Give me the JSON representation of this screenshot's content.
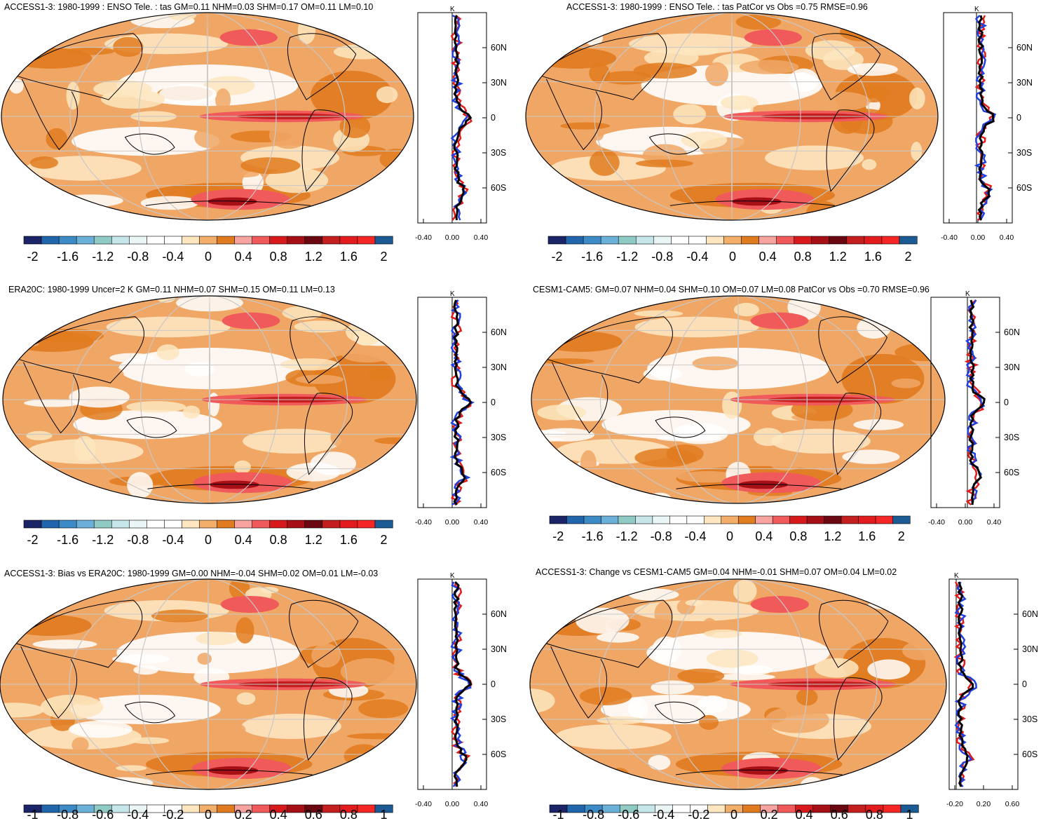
{
  "lat_labels": [
    "60N",
    "30N",
    "0",
    "30S",
    "60S"
  ],
  "profile_unit": "K",
  "panels": [
    {
      "id": "p1",
      "title": "ACCESS1-3: 1980-1999 : ENSO Tele. : tas GM=0.11 NHM=0.03 SHM=0.17 OM=0.11 LM=0.10",
      "colorbar_labels": [
        "-2",
        "-1.6",
        "-1.2",
        "-0.8",
        "-0.4",
        "0",
        "0.4",
        "0.8",
        "1.2",
        "1.6",
        "2"
      ],
      "colorbar_colors": [
        "#1b2467",
        "#2166ac",
        "#3c8bc6",
        "#6ab0d8",
        "#8fcbc4",
        "#c6e6ea",
        "#eaf5f5",
        "#ffffff",
        "#ffffff",
        "#fde6c0",
        "#f3ae6a",
        "#e07b1f",
        "#f7a4a0",
        "#f05a5a",
        "#d7191c",
        "#a50f15",
        "#6b0710",
        "#c41e1e",
        "#e21c1c",
        "#f52626",
        "#1b5a92"
      ],
      "profile_xticks": [
        "-0.40",
        "0.00",
        "0.40"
      ]
    },
    {
      "id": "p2",
      "title": "ACCESS1-3: 1980-1999 : ENSO Tele. : tas PatCor vs Obs =0.75 RMSE=0.96",
      "colorbar_labels": [
        "-2",
        "-1.6",
        "-1.2",
        "-0.8",
        "-0.4",
        "0",
        "0.4",
        "0.8",
        "1.2",
        "1.6",
        "2"
      ],
      "colorbar_colors": [
        "#1b2467",
        "#2166ac",
        "#3c8bc6",
        "#6ab0d8",
        "#8fcbc4",
        "#c6e6ea",
        "#eaf5f5",
        "#ffffff",
        "#ffffff",
        "#fde6c0",
        "#f3ae6a",
        "#e07b1f",
        "#f7a4a0",
        "#f05a5a",
        "#d7191c",
        "#a50f15",
        "#6b0710",
        "#c41e1e",
        "#e21c1c",
        "#f52626",
        "#1b5a92"
      ],
      "profile_xticks": [
        "-0.40",
        "0.00",
        "0.40"
      ]
    },
    {
      "id": "p3",
      "title": "ERA20C: 1980-1999 Uncer=2 K GM=0.11 NHM=0.07 SHM=0.15 OM=0.11 LM=0.13",
      "colorbar_labels": [
        "-2",
        "-1.6",
        "-1.2",
        "-0.8",
        "-0.4",
        "0",
        "0.4",
        "0.8",
        "1.2",
        "1.6",
        "2"
      ],
      "colorbar_colors": [
        "#1b2467",
        "#2166ac",
        "#3c8bc6",
        "#6ab0d8",
        "#8fcbc4",
        "#c6e6ea",
        "#eaf5f5",
        "#ffffff",
        "#ffffff",
        "#fde6c0",
        "#f3ae6a",
        "#e07b1f",
        "#f7a4a0",
        "#f05a5a",
        "#d7191c",
        "#a50f15",
        "#6b0710",
        "#c41e1e",
        "#e21c1c",
        "#f52626",
        "#1b5a92"
      ],
      "profile_xticks": [
        "-0.40",
        "0.00",
        "0.40"
      ]
    },
    {
      "id": "p4",
      "title": "CESM1-CAM5: GM=0.07 NHM=0.04 SHM=0.10 OM=0.07 LM=0.08 PatCor vs Obs =0.70 RMSE=0.96",
      "colorbar_labels": [
        "-2",
        "-1.6",
        "-1.2",
        "-0.8",
        "-0.4",
        "0",
        "0.4",
        "0.8",
        "1.2",
        "1.6",
        "2"
      ],
      "colorbar_colors": [
        "#1b2467",
        "#2166ac",
        "#3c8bc6",
        "#6ab0d8",
        "#8fcbc4",
        "#c6e6ea",
        "#eaf5f5",
        "#ffffff",
        "#ffffff",
        "#fde6c0",
        "#f3ae6a",
        "#e07b1f",
        "#f7a4a0",
        "#f05a5a",
        "#d7191c",
        "#a50f15",
        "#6b0710",
        "#c41e1e",
        "#e21c1c",
        "#f52626",
        "#1b5a92"
      ],
      "profile_xticks": [
        "-0.40",
        "0.00",
        "0.40"
      ]
    },
    {
      "id": "p5",
      "title": "ACCESS1-3: Bias vs ERA20C: 1980-1999 GM=0.00 NHM=-0.04 SHM=0.02 OM=0.01 LM=-0.03",
      "colorbar_labels": [
        "-1",
        "-0.8",
        "-0.6",
        "-0.4",
        "-0.2",
        "0",
        "0.2",
        "0.4",
        "0.6",
        "0.8",
        "1"
      ],
      "colorbar_colors": [
        "#1b2467",
        "#2166ac",
        "#3c8bc6",
        "#6ab0d8",
        "#8fcbc4",
        "#c6e6ea",
        "#eaf5f5",
        "#ffffff",
        "#ffffff",
        "#fde6c0",
        "#f3ae6a",
        "#e07b1f",
        "#f7a4a0",
        "#f05a5a",
        "#d7191c",
        "#a50f15",
        "#6b0710",
        "#c41e1e",
        "#e21c1c",
        "#f52626",
        "#1b5a92"
      ],
      "profile_xticks": [
        "-0.40",
        "0.00",
        "0.40"
      ]
    },
    {
      "id": "p6",
      "title": "ACCESS1-3: Change vs CESM1-CAM5 GM=0.04 NHM=-0.01 SHM=0.07 OM=0.04 LM=0.02",
      "colorbar_labels": [
        "-1",
        "-0.8",
        "-0.6",
        "-0.4",
        "-0.2",
        "0",
        "0.2",
        "0.4",
        "0.6",
        "0.8",
        "1"
      ],
      "colorbar_colors": [
        "#1b2467",
        "#2166ac",
        "#3c8bc6",
        "#6ab0d8",
        "#8fcbc4",
        "#c6e6ea",
        "#eaf5f5",
        "#ffffff",
        "#ffffff",
        "#fde6c0",
        "#f3ae6a",
        "#e07b1f",
        "#f7a4a0",
        "#f05a5a",
        "#d7191c",
        "#a50f15",
        "#6b0710",
        "#c41e1e",
        "#e21c1c",
        "#f52626",
        "#1b5a92"
      ],
      "profile_xticks": [
        "-0.20",
        "0.20",
        "0.60"
      ]
    }
  ]
}
